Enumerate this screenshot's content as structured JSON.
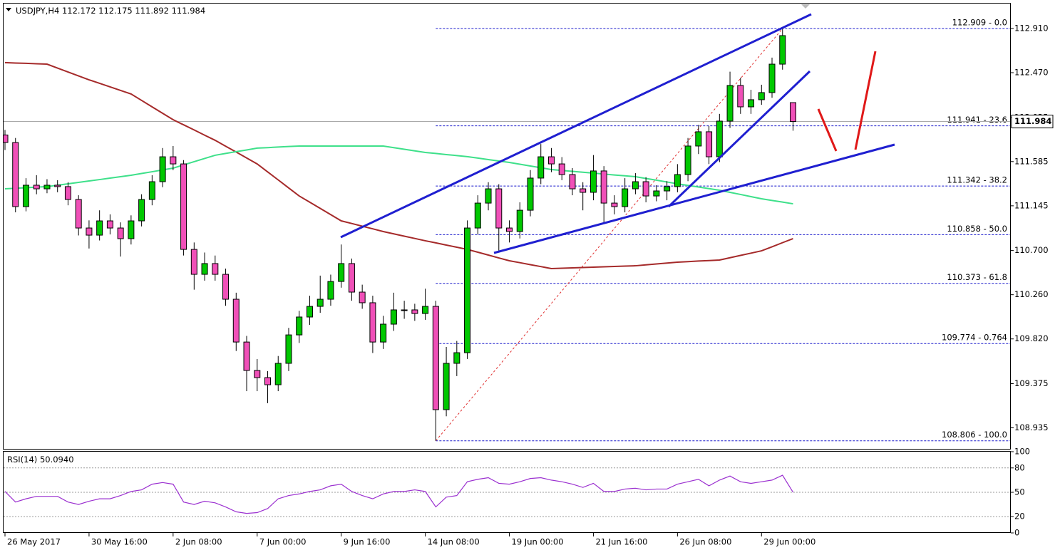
{
  "chart_data": {
    "type": "candlestick",
    "symbol": "USDJPY,H4",
    "categories": [
      "26 May 2017",
      null,
      null,
      null,
      null,
      null,
      null,
      null,
      "30 May 16:00",
      null,
      null,
      null,
      null,
      null,
      null,
      null,
      "2 Jun 08:00",
      null,
      null,
      null,
      null,
      null,
      null,
      null,
      "7 Jun 00:00",
      null,
      null,
      null,
      null,
      null,
      null,
      null,
      "9 Jun 16:00",
      null,
      null,
      null,
      null,
      null,
      null,
      null,
      "14 Jun 08:00",
      null,
      null,
      null,
      null,
      null,
      null,
      null,
      "19 Jun 00:00",
      null,
      null,
      null,
      null,
      null,
      null,
      null,
      "21 Jun 16:00",
      null,
      null,
      null,
      null,
      null,
      null,
      null,
      "26 Jun 08:00",
      null,
      null,
      null,
      null,
      null,
      null,
      null,
      "29 Jun 00:00",
      null,
      null,
      null
    ],
    "candles": [
      [
        111.85,
        111.9,
        111.7,
        111.775
      ],
      [
        111.775,
        111.82,
        111.08,
        111.137
      ],
      [
        111.137,
        111.42,
        111.09,
        111.35
      ],
      [
        111.35,
        111.45,
        111.26,
        111.314
      ],
      [
        111.314,
        111.41,
        111.27,
        111.35
      ],
      [
        111.35,
        111.4,
        111.28,
        111.336
      ],
      [
        111.336,
        111.38,
        111.15,
        111.208
      ],
      [
        111.208,
        111.25,
        110.85,
        110.924
      ],
      [
        110.924,
        111.0,
        110.72,
        110.853
      ],
      [
        110.853,
        111.1,
        110.8,
        110.995
      ],
      [
        110.995,
        111.06,
        110.86,
        110.924
      ],
      [
        110.924,
        110.98,
        110.64,
        110.818
      ],
      [
        110.818,
        111.05,
        110.76,
        110.995
      ],
      [
        110.995,
        111.26,
        110.94,
        111.208
      ],
      [
        111.208,
        111.45,
        111.15,
        111.385
      ],
      [
        111.385,
        111.72,
        111.33,
        111.633
      ],
      [
        111.633,
        111.74,
        111.5,
        111.562
      ],
      [
        111.562,
        111.6,
        110.65,
        110.711
      ],
      [
        110.711,
        110.78,
        110.31,
        110.463
      ],
      [
        110.463,
        110.68,
        110.4,
        110.57
      ],
      [
        110.57,
        110.65,
        110.4,
        110.463
      ],
      [
        110.463,
        110.52,
        110.15,
        110.215
      ],
      [
        110.215,
        110.28,
        109.7,
        109.789
      ],
      [
        109.789,
        109.85,
        109.3,
        109.506
      ],
      [
        109.506,
        109.62,
        109.3,
        109.435
      ],
      [
        109.435,
        109.5,
        109.18,
        109.364
      ],
      [
        109.364,
        109.65,
        109.3,
        109.577
      ],
      [
        109.577,
        109.93,
        109.5,
        109.86
      ],
      [
        109.86,
        110.1,
        109.78,
        110.038
      ],
      [
        110.038,
        110.25,
        109.96,
        110.144
      ],
      [
        110.144,
        110.45,
        110.08,
        110.215
      ],
      [
        110.215,
        110.46,
        110.15,
        110.392
      ],
      [
        110.392,
        110.76,
        110.33,
        110.57
      ],
      [
        110.57,
        110.62,
        110.2,
        110.286
      ],
      [
        110.286,
        110.36,
        110.12,
        110.18
      ],
      [
        110.18,
        110.25,
        109.68,
        109.789
      ],
      [
        109.789,
        110.05,
        109.72,
        109.967
      ],
      [
        109.967,
        110.28,
        109.9,
        110.109
      ],
      [
        110.109,
        110.2,
        110.02,
        110.109
      ],
      [
        110.109,
        110.17,
        110.0,
        110.073
      ],
      [
        110.073,
        110.32,
        110.01,
        110.144
      ],
      [
        110.144,
        110.2,
        108.806,
        109.116
      ],
      [
        109.116,
        109.74,
        109.05,
        109.577
      ],
      [
        109.577,
        109.8,
        109.45,
        109.683
      ],
      [
        109.683,
        111.0,
        109.62,
        110.924
      ],
      [
        110.924,
        111.25,
        110.86,
        111.172
      ],
      [
        111.172,
        111.38,
        111.1,
        111.314
      ],
      [
        111.314,
        111.36,
        110.7,
        110.924
      ],
      [
        110.924,
        111.0,
        110.78,
        110.889
      ],
      [
        110.889,
        111.18,
        110.82,
        111.101
      ],
      [
        111.101,
        111.5,
        111.04,
        111.421
      ],
      [
        111.421,
        111.76,
        111.36,
        111.633
      ],
      [
        111.633,
        111.72,
        111.48,
        111.562
      ],
      [
        111.562,
        111.63,
        111.4,
        111.456
      ],
      [
        111.456,
        111.52,
        111.25,
        111.314
      ],
      [
        111.314,
        111.38,
        111.1,
        111.279
      ],
      [
        111.279,
        111.65,
        111.2,
        111.492
      ],
      [
        111.492,
        111.54,
        110.98,
        111.172
      ],
      [
        111.172,
        111.25,
        111.06,
        111.137
      ],
      [
        111.137,
        111.42,
        111.08,
        111.314
      ],
      [
        111.314,
        111.47,
        111.26,
        111.385
      ],
      [
        111.385,
        111.43,
        111.18,
        111.243
      ],
      [
        111.243,
        111.35,
        111.19,
        111.293
      ],
      [
        111.293,
        111.39,
        111.2,
        111.336
      ],
      [
        111.336,
        111.56,
        111.28,
        111.456
      ],
      [
        111.456,
        111.82,
        111.39,
        111.74
      ],
      [
        111.74,
        111.95,
        111.66,
        111.882
      ],
      [
        111.882,
        111.94,
        111.56,
        111.633
      ],
      [
        111.633,
        112.06,
        111.58,
        111.988
      ],
      [
        111.988,
        112.48,
        111.92,
        112.343
      ],
      [
        112.343,
        112.42,
        112.06,
        112.13
      ],
      [
        112.13,
        112.3,
        112.06,
        112.201
      ],
      [
        112.201,
        112.35,
        112.15,
        112.272
      ],
      [
        112.272,
        112.62,
        112.22,
        112.555
      ],
      [
        112.555,
        112.909,
        112.5,
        112.839
      ],
      [
        112.172,
        112.175,
        111.892,
        111.984
      ]
    ],
    "color_up": "#00c800",
    "color_down": "#f050b8",
    "ylim": [
      108.726,
      113.158
    ],
    "yticks": [
      {
        "value": 112.91,
        "label": "112.910"
      },
      {
        "value": 112.47,
        "label": "112.470"
      },
      112.025,
      111.585,
      111.145,
      {
        "value": 110.7,
        "label": "110.700"
      },
      {
        "value": 110.26,
        "label": "110.260"
      },
      {
        "value": 109.82,
        "label": "109.820"
      },
      109.375,
      108.935
    ],
    "grid": false,
    "series": [
      {
        "color": "#a52a2a",
        "values": [
          112.57,
          112.566,
          112.563,
          112.559,
          112.555,
          112.516,
          112.477,
          112.438,
          112.399,
          112.364,
          112.329,
          112.293,
          112.258,
          112.194,
          112.13,
          112.066,
          112.002,
          111.951,
          111.9,
          111.848,
          111.797,
          111.738,
          111.68,
          111.621,
          111.562,
          111.482,
          111.403,
          111.323,
          111.243,
          111.181,
          111.119,
          111.057,
          110.995,
          110.969,
          110.942,
          110.916,
          110.889,
          110.866,
          110.843,
          110.82,
          110.797,
          110.776,
          110.754,
          110.733,
          110.711,
          110.683,
          110.655,
          110.626,
          110.598,
          110.579,
          110.559,
          110.54,
          110.52,
          110.524,
          110.527,
          110.531,
          110.534,
          110.538,
          110.541,
          110.545,
          110.548,
          110.557,
          110.566,
          110.575,
          110.584,
          110.589,
          110.595,
          110.6,
          110.605,
          110.628,
          110.651,
          110.674,
          110.697,
          110.737,
          110.778,
          110.818
        ]
      },
      {
        "color": "#3ee08a",
        "values": [
          111.314,
          111.32,
          111.325,
          111.331,
          111.336,
          111.35,
          111.364,
          111.378,
          111.392,
          111.406,
          111.421,
          111.435,
          111.449,
          111.467,
          111.484,
          111.502,
          111.52,
          111.552,
          111.584,
          111.616,
          111.648,
          111.666,
          111.684,
          111.701,
          111.719,
          111.724,
          111.73,
          111.735,
          111.74,
          111.74,
          111.74,
          111.74,
          111.74,
          111.74,
          111.74,
          111.74,
          111.74,
          111.724,
          111.708,
          111.692,
          111.676,
          111.666,
          111.655,
          111.645,
          111.634,
          111.62,
          111.605,
          111.591,
          111.577,
          111.559,
          111.541,
          111.524,
          111.506,
          111.497,
          111.488,
          111.479,
          111.47,
          111.461,
          111.452,
          111.444,
          111.435,
          111.417,
          111.4,
          111.382,
          111.364,
          111.348,
          111.332,
          111.316,
          111.3,
          111.279,
          111.258,
          111.236,
          111.215,
          111.198,
          111.182,
          111.165
        ]
      }
    ],
    "fib_color": "#1a1acc",
    "fib_levels": [
      {
        "value": 112.909,
        "label": "112.909 - 0.0"
      },
      {
        "value": 111.941,
        "label": "111.941 - 23.6"
      },
      {
        "value": 111.342,
        "label": "111.342 - 38.2"
      },
      {
        "value": 110.858,
        "label": "110.858 - 50.0"
      },
      {
        "value": 110.373,
        "label": "110.373 - 61.8"
      },
      {
        "value": 109.774,
        "label": "109.774 - 0.764"
      },
      {
        "value": 108.806,
        "label": "108.806 - 100.0"
      }
    ],
    "rsi": {
      "title": "RSI(14)",
      "color": "#9b30d0",
      "ylim": [
        0,
        100
      ],
      "yticks": [
        100,
        80,
        50,
        20,
        0
      ],
      "values": [
        51,
        38,
        42,
        45,
        45,
        45,
        38,
        35,
        39,
        42,
        42,
        46,
        51,
        53,
        60,
        62,
        60,
        38,
        35,
        39,
        37,
        32,
        26,
        24,
        25,
        30,
        42,
        46,
        48,
        51,
        53,
        58,
        60,
        51,
        46,
        42,
        48,
        51,
        51,
        53,
        51,
        32,
        44,
        46,
        63,
        66,
        68,
        61,
        60,
        63,
        67,
        68,
        65,
        63,
        60,
        56,
        61,
        51,
        51,
        54,
        55,
        53,
        54,
        54,
        60,
        63,
        66,
        58,
        65,
        70,
        63,
        61,
        63,
        65,
        71,
        50.094
      ],
      "value_labels": [
        null,
        null,
        null,
        null,
        null,
        null,
        null,
        null,
        null,
        null,
        null,
        null,
        null,
        null,
        null,
        null,
        null,
        null,
        null,
        null,
        null,
        null,
        null,
        null,
        null,
        null,
        null,
        null,
        null,
        null,
        null,
        null,
        null,
        null,
        null,
        null,
        null,
        null,
        null,
        null,
        null,
        null,
        null,
        null,
        null,
        null,
        null,
        null,
        null,
        null,
        null,
        null,
        null,
        null,
        null,
        null,
        null,
        null,
        null,
        null,
        null,
        null,
        null,
        null,
        null,
        null,
        null,
        null,
        null,
        null,
        null,
        null,
        null,
        null,
        null,
        "50.0940"
      ]
    }
  }
}
